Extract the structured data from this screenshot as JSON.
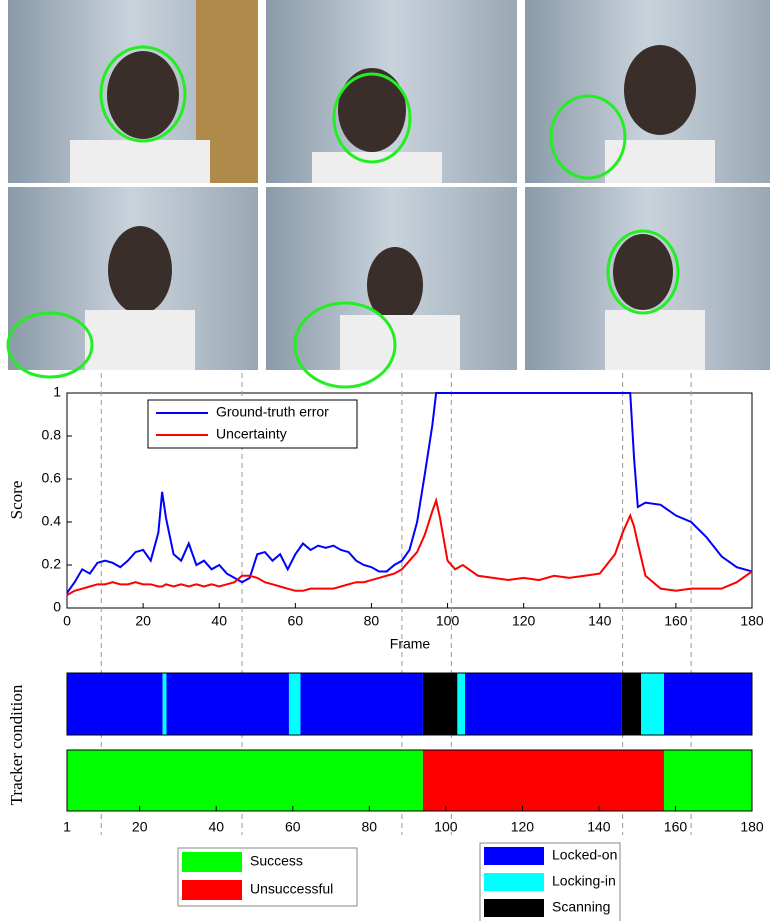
{
  "chart_data": [
    {
      "type": "line",
      "xlabel": "Frame",
      "ylabel": "Score",
      "x": [
        0,
        2,
        4,
        6,
        8,
        10,
        12,
        14,
        16,
        18,
        20,
        22,
        24,
        25,
        26,
        28,
        30,
        32,
        34,
        36,
        38,
        40,
        42,
        44,
        46,
        48,
        50,
        52,
        54,
        56,
        58,
        60,
        62,
        64,
        66,
        68,
        70,
        72,
        74,
        76,
        78,
        80,
        82,
        84,
        86,
        88,
        90,
        92,
        94,
        96,
        97,
        98,
        100,
        102,
        104,
        108,
        112,
        116,
        120,
        124,
        128,
        132,
        136,
        140,
        144,
        146,
        148,
        149,
        150,
        152,
        156,
        160,
        164,
        168,
        172,
        176,
        180
      ],
      "series": [
        {
          "name": "Ground-truth error",
          "color": "#0000ff",
          "values": [
            0.07,
            0.12,
            0.18,
            0.16,
            0.21,
            0.22,
            0.21,
            0.19,
            0.22,
            0.26,
            0.27,
            0.22,
            0.35,
            0.54,
            0.42,
            0.25,
            0.22,
            0.3,
            0.2,
            0.22,
            0.18,
            0.2,
            0.16,
            0.14,
            0.12,
            0.14,
            0.25,
            0.26,
            0.22,
            0.25,
            0.18,
            0.25,
            0.3,
            0.27,
            0.29,
            0.28,
            0.29,
            0.27,
            0.26,
            0.22,
            0.2,
            0.19,
            0.17,
            0.17,
            0.2,
            0.22,
            0.27,
            0.4,
            0.62,
            0.85,
            1,
            1,
            1,
            1,
            1,
            1,
            1,
            1,
            1,
            1,
            1,
            1,
            1,
            1,
            1,
            1,
            1,
            0.7,
            0.47,
            0.49,
            0.48,
            0.43,
            0.4,
            0.33,
            0.24,
            0.19,
            0.17
          ]
        },
        {
          "name": "Uncertainty",
          "color": "#ff0000",
          "values": [
            0.06,
            0.08,
            0.09,
            0.1,
            0.11,
            0.11,
            0.12,
            0.11,
            0.11,
            0.12,
            0.11,
            0.11,
            0.1,
            0.1,
            0.11,
            0.1,
            0.11,
            0.1,
            0.11,
            0.1,
            0.11,
            0.1,
            0.11,
            0.12,
            0.15,
            0.15,
            0.14,
            0.12,
            0.11,
            0.1,
            0.09,
            0.08,
            0.08,
            0.09,
            0.09,
            0.09,
            0.09,
            0.1,
            0.11,
            0.12,
            0.12,
            0.13,
            0.14,
            0.15,
            0.16,
            0.18,
            0.22,
            0.26,
            0.34,
            0.45,
            0.5,
            0.42,
            0.22,
            0.18,
            0.2,
            0.15,
            0.14,
            0.13,
            0.14,
            0.13,
            0.15,
            0.14,
            0.15,
            0.16,
            0.25,
            0.35,
            0.43,
            0.38,
            0.3,
            0.15,
            0.09,
            0.08,
            0.09,
            0.09,
            0.09,
            0.12,
            0.17
          ]
        }
      ],
      "xlim": [
        0,
        180
      ],
      "xticks": [
        0,
        20,
        40,
        60,
        80,
        100,
        120,
        140,
        160,
        180
      ],
      "ylim": [
        0,
        1
      ],
      "yticks": [
        0,
        0.2,
        0.4,
        0.6,
        0.8,
        1
      ],
      "legend": "upper left",
      "frame_markers": [
        9,
        46,
        88,
        101,
        146,
        164
      ]
    },
    {
      "type": "state-bar",
      "ylabel": "Tracker condition",
      "xlim": [
        1,
        180
      ],
      "xticks": [
        1,
        20,
        40,
        60,
        80,
        100,
        120,
        140,
        160,
        180
      ],
      "rows": [
        {
          "legend": "lower right",
          "states": [
            {
              "name": "Locked-on",
              "color": "#0000ff",
              "intervals": [
                [
                  1,
                  26
                ],
                [
                  27,
                  59
                ],
                [
                  62,
                  94
                ],
                [
                  105,
                  146
                ],
                [
                  157,
                  180
                ]
              ]
            },
            {
              "name": "Locking-in",
              "color": "#00ffff",
              "intervals": [
                [
                  26,
                  27
                ],
                [
                  59,
                  62
                ],
                [
                  103,
                  105
                ],
                [
                  151,
                  157
                ]
              ]
            },
            {
              "name": "Scanning",
              "color": "#000000",
              "intervals": [
                [
                  94,
                  103
                ],
                [
                  146,
                  151
                ]
              ]
            }
          ]
        },
        {
          "legend": "lower left",
          "states": [
            {
              "name": "Success",
              "color": "#00ff00",
              "intervals": [
                [
                  1,
                  94
                ],
                [
                  157,
                  180
                ]
              ]
            },
            {
              "name": "Unsuccessful",
              "color": "#ff0000",
              "intervals": [
                [
                  94,
                  157
                ]
              ]
            }
          ]
        }
      ]
    }
  ]
}
